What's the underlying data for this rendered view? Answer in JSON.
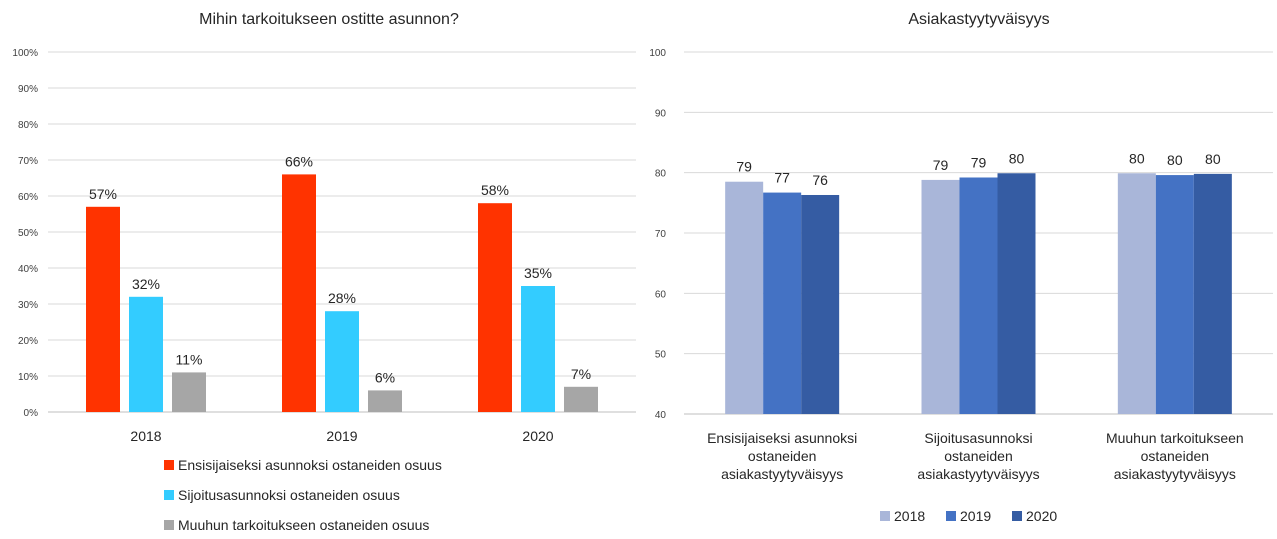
{
  "chart_data": [
    {
      "type": "bar",
      "title": "Mihin tarkoitukseen ostitte asunnon?",
      "categories": [
        "2018",
        "2019",
        "2020"
      ],
      "series": [
        {
          "name": "Ensisijaiseksi asunnoksi ostaneiden osuus",
          "values": [
            57,
            66,
            58
          ],
          "labels": [
            "57%",
            "66%",
            "58%"
          ],
          "color": "#ff3300"
        },
        {
          "name": "Sijoitusasunnoksi ostaneiden osuus",
          "values": [
            32,
            28,
            35
          ],
          "labels": [
            "32%",
            "28%",
            "35%"
          ],
          "color": "#33ccff"
        },
        {
          "name": "Muuhun tarkoitukseen ostaneiden osuus",
          "values": [
            11,
            6,
            7
          ],
          "labels": [
            "11%",
            "6%",
            "7%"
          ],
          "color": "#a6a6a6"
        }
      ],
      "ylim": [
        0,
        100
      ],
      "yticks": [
        "0%",
        "10%",
        "20%",
        "30%",
        "40%",
        "50%",
        "60%",
        "70%",
        "80%",
        "90%",
        "100%"
      ],
      "grid": true,
      "legend_position": "bottom"
    },
    {
      "type": "bar",
      "title": "Asiakastyytyväisyys",
      "categories": [
        [
          "Ensisijaiseksi asunnoksi",
          "ostaneiden",
          "asiakastyytyväisyys"
        ],
        [
          "Sijoitusasunnoksi",
          "ostaneiden",
          "asiakastyytyväisyys"
        ],
        [
          "Muuhun tarkoitukseen",
          "ostaneiden",
          "asiakastyytyväisyys"
        ]
      ],
      "series": [
        {
          "name": "2018",
          "values": [
            78.5,
            78.8,
            79.9
          ],
          "labels": [
            "79",
            "79",
            "80"
          ],
          "color": "#a9b6d9"
        },
        {
          "name": "2019",
          "values": [
            76.7,
            79.2,
            79.6
          ],
          "labels": [
            "77",
            "79",
            "80"
          ],
          "color": "#4472c4"
        },
        {
          "name": "2020",
          "values": [
            76.3,
            79.9,
            79.8
          ],
          "labels": [
            "76",
            "80",
            "80"
          ],
          "color": "#355ca3"
        }
      ],
      "ylim": [
        40,
        100
      ],
      "yticks": [
        "40",
        "50",
        "60",
        "70",
        "80",
        "90",
        "100"
      ],
      "grid": true,
      "legend_position": "bottom"
    }
  ]
}
